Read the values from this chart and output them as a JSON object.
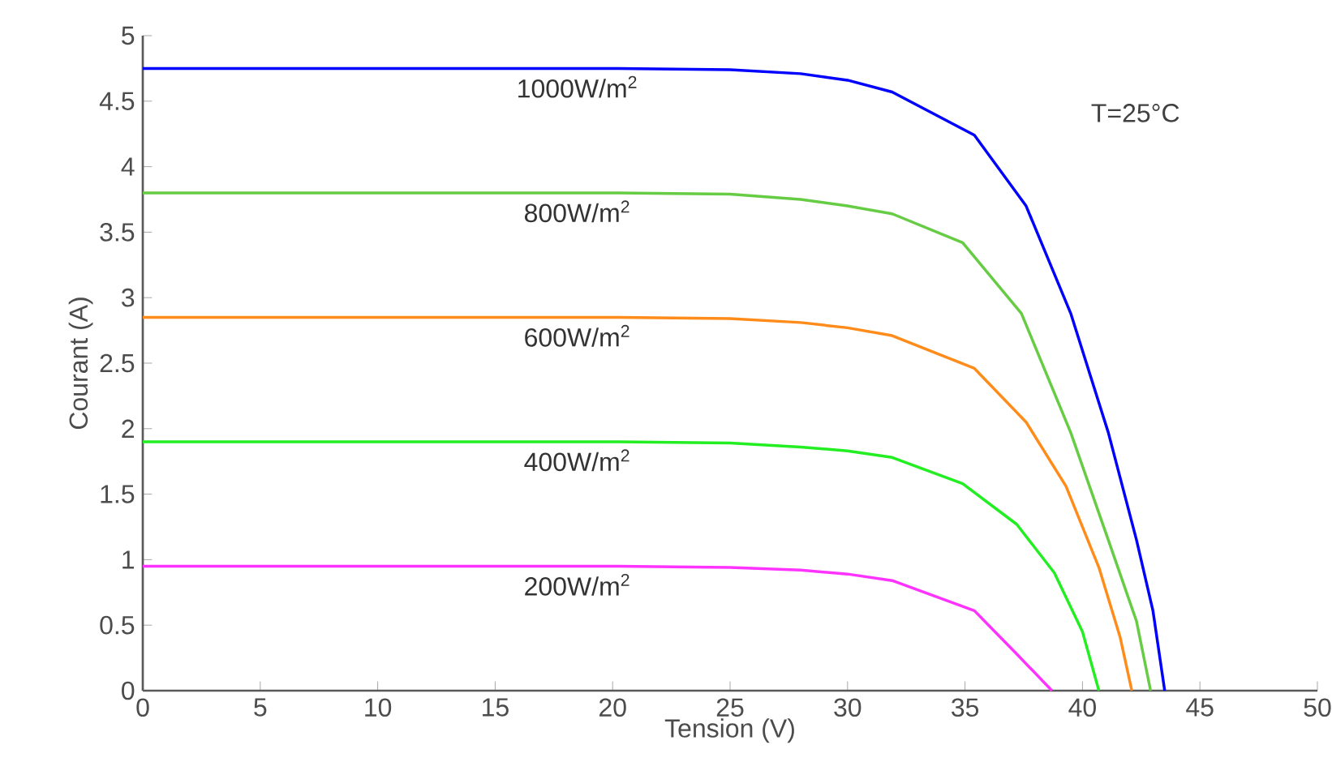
{
  "chart_data": {
    "type": "line",
    "xlabel": "Tension (V)",
    "ylabel": "Courant (A)",
    "xlim": [
      0,
      50
    ],
    "ylim": [
      0,
      5
    ],
    "xticks": [
      0,
      5,
      10,
      15,
      20,
      25,
      30,
      35,
      40,
      45,
      50
    ],
    "yticks": [
      0,
      0.5,
      1,
      1.5,
      2,
      2.5,
      3,
      3.5,
      4,
      4.5,
      5
    ],
    "grid": false,
    "legend": false,
    "marker": "none",
    "line_style": "solid",
    "annotations": [
      "T=25°C"
    ],
    "series": [
      {
        "name": "1000W/m$^{2}$",
        "color": "#0000ff",
        "x": [
          0,
          20,
          25,
          28,
          30,
          31.9,
          35.4,
          37.6,
          39.5,
          41.1,
          42.3,
          43.0,
          43.5
        ],
        "values": [
          4.75,
          4.75,
          4.74,
          4.71,
          4.66,
          4.57,
          4.24,
          3.7,
          2.88,
          1.97,
          1.15,
          0.61,
          0
        ]
      },
      {
        "name": "800W/m$^{2}$",
        "color": "#66cc44",
        "x": [
          0,
          20,
          25,
          28,
          30,
          31.9,
          34.9,
          37.4,
          39.5,
          41.1,
          42.3,
          42.9
        ],
        "values": [
          3.8,
          3.8,
          3.79,
          3.75,
          3.7,
          3.64,
          3.42,
          2.88,
          1.97,
          1.15,
          0.53,
          0
        ]
      },
      {
        "name": "600W/m$^{2}$",
        "color": "#ff8c1a",
        "x": [
          0,
          20,
          25,
          28,
          30,
          31.9,
          35.4,
          37.6,
          39.3,
          40.7,
          41.6,
          42.1
        ],
        "values": [
          2.85,
          2.85,
          2.84,
          2.81,
          2.77,
          2.71,
          2.46,
          2.05,
          1.56,
          0.94,
          0.41,
          0
        ]
      },
      {
        "name": "400W/m$^{2}$",
        "color": "#22ee22",
        "x": [
          0,
          20,
          25,
          28,
          30,
          31.9,
          34.9,
          37.2,
          38.8,
          40.0,
          40.7
        ],
        "values": [
          1.9,
          1.9,
          1.89,
          1.86,
          1.83,
          1.78,
          1.58,
          1.27,
          0.9,
          0.45,
          0
        ]
      },
      {
        "name": "200W/m$^{2}$",
        "color": "#ff33ff",
        "x": [
          0,
          20,
          25,
          28,
          30,
          31.9,
          35.4,
          37.2,
          38.7
        ],
        "values": [
          0.95,
          0.95,
          0.94,
          0.92,
          0.89,
          0.84,
          0.61,
          0.28,
          0
        ]
      }
    ]
  }
}
